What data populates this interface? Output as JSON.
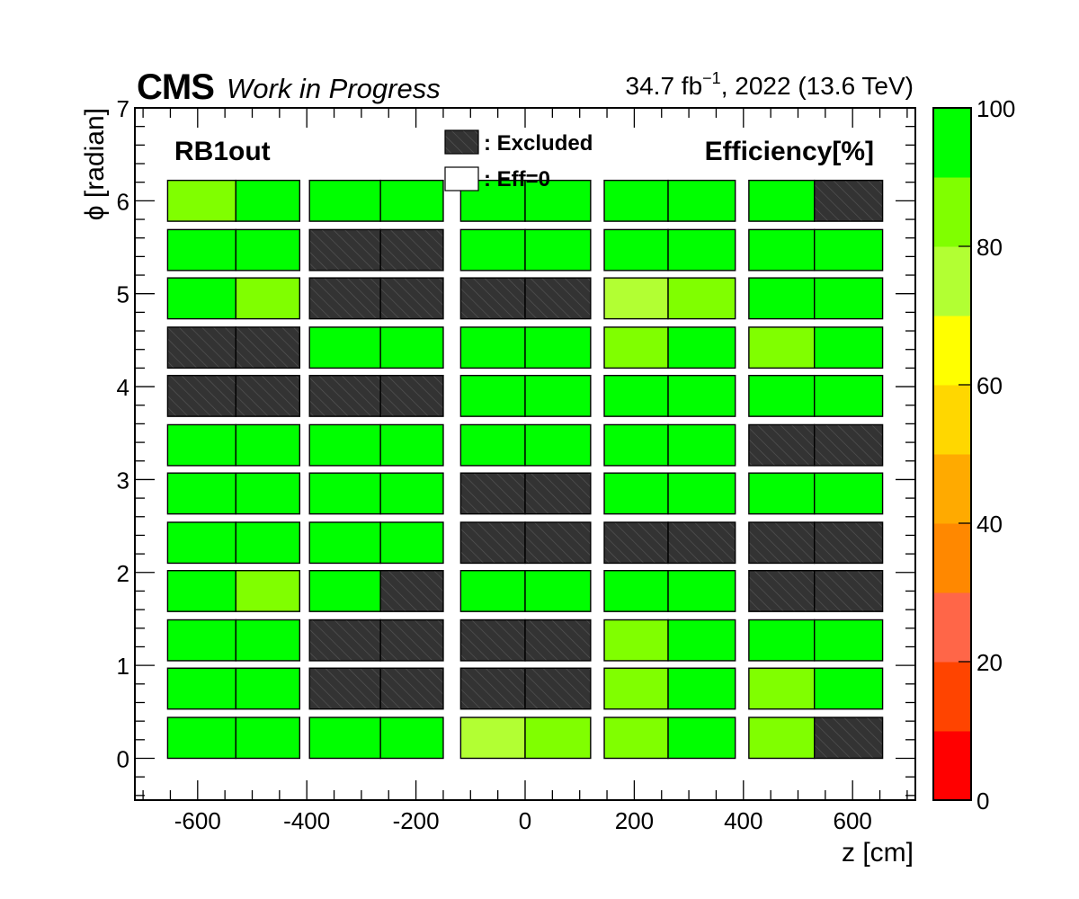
{
  "header": {
    "experiment": "CMS",
    "status": "Work in Progress",
    "lumi_label": "34.7 fb",
    "lumi_exp": "−1",
    "lumi_suffix": ", 2022 (13.6 TeV)"
  },
  "chart_data": {
    "type": "heatmap",
    "panel_label": "RB1out",
    "metric_label": "Efficiency[%]",
    "xlabel": "z [cm]",
    "ylabel": "ϕ [radian]",
    "xlim": [
      -715,
      715
    ],
    "ylim": [
      -0.45,
      7.0
    ],
    "x_ticks": [
      -600,
      -400,
      -200,
      0,
      200,
      400,
      600
    ],
    "x_tick_labels": [
      "-600",
      "-400",
      "-200",
      "0",
      "200",
      "400",
      "600"
    ],
    "y_ticks": [
      0,
      1,
      2,
      3,
      4,
      5,
      6,
      7
    ],
    "y_tick_labels": [
      "0",
      "1",
      "2",
      "3",
      "4",
      "5",
      "6",
      "7"
    ],
    "legend": {
      "excluded_label": ": Excluded",
      "eff0_label": ": Eff=0"
    },
    "colorbar": {
      "min": 0,
      "max": 100,
      "step": 10,
      "tick_labels": [
        "0",
        "20",
        "40",
        "60",
        "80",
        "100"
      ],
      "tick_values": [
        0,
        20,
        40,
        60,
        80,
        100
      ],
      "colors": [
        "#ff0000",
        "#ff4400",
        "#ff6648",
        "#ff8800",
        "#ffaa00",
        "#ffd700",
        "#ffff00",
        "#b2ff33",
        "#80ff00",
        "#00ff00"
      ]
    },
    "excluded_color": "#333333",
    "wheels": [
      {
        "z": [
          -655,
          -530,
          -413
        ]
      },
      {
        "z": [
          -395,
          -265,
          -150
        ]
      },
      {
        "z": [
          -118,
          0,
          120
        ]
      },
      {
        "z": [
          145,
          262,
          385
        ]
      },
      {
        "z": [
          410,
          530,
          655
        ]
      }
    ],
    "phi_rows": [
      {
        "phi": 6.0,
        "wheels": [
          [
            85,
            100
          ],
          [
            100,
            100
          ],
          [
            100,
            100
          ],
          [
            100,
            100
          ],
          [
            100,
            null
          ]
        ]
      },
      {
        "phi": 5.47,
        "wheels": [
          [
            100,
            100
          ],
          [
            null,
            null
          ],
          [
            100,
            100
          ],
          [
            100,
            100
          ],
          [
            100,
            100
          ]
        ]
      },
      {
        "phi": 4.95,
        "wheels": [
          [
            100,
            85
          ],
          [
            null,
            null
          ],
          [
            null,
            null
          ],
          [
            75,
            85
          ],
          [
            100,
            100
          ]
        ]
      },
      {
        "phi": 4.42,
        "wheels": [
          [
            null,
            null
          ],
          [
            100,
            100
          ],
          [
            100,
            100
          ],
          [
            85,
            100
          ],
          [
            85,
            100
          ]
        ]
      },
      {
        "phi": 3.9,
        "wheels": [
          [
            null,
            null
          ],
          [
            null,
            null
          ],
          [
            100,
            100
          ],
          [
            100,
            100
          ],
          [
            100,
            100
          ]
        ]
      },
      {
        "phi": 3.37,
        "wheels": [
          [
            100,
            100
          ],
          [
            100,
            100
          ],
          [
            100,
            100
          ],
          [
            100,
            100
          ],
          [
            null,
            null
          ]
        ]
      },
      {
        "phi": 2.85,
        "wheels": [
          [
            100,
            100
          ],
          [
            100,
            100
          ],
          [
            null,
            null
          ],
          [
            100,
            100
          ],
          [
            100,
            100
          ]
        ]
      },
      {
        "phi": 2.32,
        "wheels": [
          [
            100,
            100
          ],
          [
            100,
            100
          ],
          [
            null,
            null
          ],
          [
            null,
            null
          ],
          [
            null,
            null
          ]
        ]
      },
      {
        "phi": 1.8,
        "wheels": [
          [
            100,
            85
          ],
          [
            100,
            null
          ],
          [
            100,
            100
          ],
          [
            100,
            100
          ],
          [
            null,
            null
          ]
        ]
      },
      {
        "phi": 1.27,
        "wheels": [
          [
            100,
            100
          ],
          [
            null,
            null
          ],
          [
            null,
            null
          ],
          [
            85,
            100
          ],
          [
            100,
            100
          ]
        ]
      },
      {
        "phi": 0.75,
        "wheels": [
          [
            100,
            100
          ],
          [
            null,
            null
          ],
          [
            null,
            null
          ],
          [
            85,
            100
          ],
          [
            85,
            100
          ]
        ]
      },
      {
        "phi": 0.22,
        "wheels": [
          [
            100,
            100
          ],
          [
            100,
            100
          ],
          [
            75,
            85
          ],
          [
            85,
            100
          ],
          [
            85,
            null
          ]
        ]
      }
    ],
    "grid": false
  }
}
